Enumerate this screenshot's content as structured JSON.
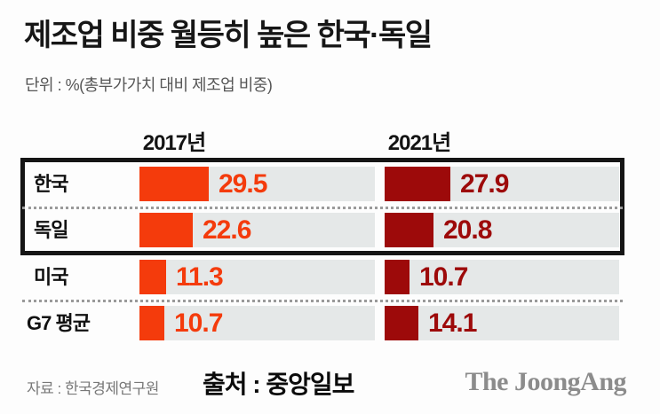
{
  "title": "제조업 비중 월등히 높은 한국·독일",
  "subtitle": "단위 : %(총부가가치 대비 제조업 비중)",
  "chart_data": {
    "type": "bar",
    "title": "제조업 비중 월등히 높은 한국·독일",
    "unit_note": "단위 : %(총부가가치 대비 제조업 비중)",
    "categories": [
      "한국",
      "독일",
      "미국",
      "G7 평균"
    ],
    "series": [
      {
        "name": "2017년",
        "values": [
          29.5,
          22.6,
          11.3,
          10.7
        ],
        "color": "#f43b0c"
      },
      {
        "name": "2021년",
        "values": [
          27.9,
          20.8,
          10.7,
          14.1
        ],
        "color": "#9d0a0a"
      }
    ],
    "highlighted_categories": [
      "한국",
      "독일"
    ],
    "legend_position": "top",
    "grid": false,
    "track_color": "#e5e8e8",
    "highlight_border_color": "#151515"
  },
  "footer": {
    "source": "자료 : 한국경제연구원",
    "credit": "출처 : 중앙일보",
    "logo": "The JoongAng"
  }
}
